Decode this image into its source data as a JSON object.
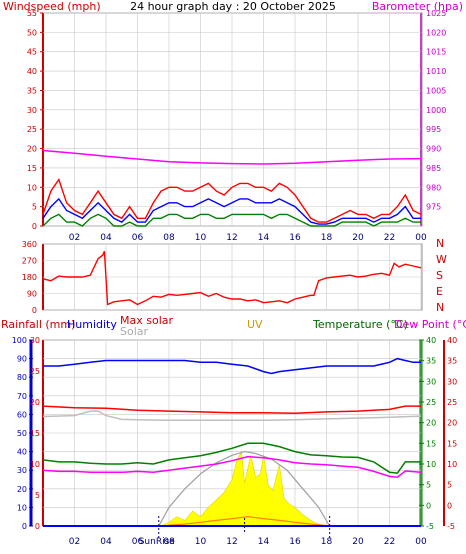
{
  "chart_data": [
    {
      "type": "line",
      "title": "24 hour graph day : 20 October 2025",
      "ylabel_left": "Windspeed (mph)",
      "ylabel_right": "Barometer (hpa)",
      "ylim_left": [
        0,
        55
      ],
      "ylim_right": [
        970,
        1025
      ],
      "yticks_left": [
        "0",
        "5",
        "10",
        "15",
        "20",
        "25",
        "30",
        "35",
        "40",
        "45",
        "50",
        "55"
      ],
      "yticks_right": [
        "975",
        "980",
        "985",
        "990",
        "995",
        "1000",
        "1005",
        "1010",
        "1015",
        "1020",
        "1025"
      ],
      "xticks": [
        "02",
        "04",
        "06",
        "08",
        "10",
        "12",
        "14",
        "16",
        "18",
        "20",
        "22",
        "00"
      ],
      "x_range_hours": [
        0,
        24
      ],
      "series": [
        {
          "key": "gust",
          "color": "#ff0000",
          "axis": "left",
          "x": [
            0,
            0.5,
            1,
            1.5,
            2,
            2.5,
            3,
            3.5,
            4,
            4.5,
            5,
            5.5,
            6,
            6.5,
            7,
            7.5,
            8,
            8.5,
            9,
            9.5,
            10,
            10.5,
            11,
            11.5,
            12,
            12.5,
            13,
            13.5,
            14,
            14.5,
            15,
            15.5,
            16,
            16.5,
            17,
            17.5,
            18,
            18.5,
            19,
            19.5,
            20,
            20.5,
            21,
            21.5,
            22,
            22.5,
            23,
            23.5,
            24
          ],
          "values": [
            3,
            9,
            12,
            6,
            4,
            3,
            6,
            9,
            6,
            3,
            2,
            5,
            2,
            2,
            6,
            9,
            10,
            10,
            9,
            9,
            10,
            11,
            9,
            8,
            10,
            11,
            11,
            10,
            10,
            9,
            11,
            10,
            8,
            5,
            2,
            1,
            1,
            2,
            3,
            4,
            3,
            3,
            2,
            3,
            3,
            5,
            8,
            4,
            3
          ]
        },
        {
          "key": "average",
          "color": "#0000ff",
          "axis": "left",
          "x": [
            0,
            0.5,
            1,
            1.5,
            2,
            2.5,
            3,
            3.5,
            4,
            4.5,
            5,
            5.5,
            6,
            6.5,
            7,
            7.5,
            8,
            8.5,
            9,
            9.5,
            10,
            10.5,
            11,
            11.5,
            12,
            12.5,
            13,
            13.5,
            14,
            14.5,
            15,
            15.5,
            16,
            16.5,
            17,
            17.5,
            18,
            18.5,
            19,
            19.5,
            20,
            20.5,
            21,
            21.5,
            22,
            22.5,
            23,
            23.5,
            24
          ],
          "values": [
            2,
            5,
            7,
            4,
            3,
            2,
            4,
            6,
            4,
            2,
            1,
            3,
            1,
            1,
            4,
            5,
            6,
            6,
            5,
            5,
            6,
            7,
            6,
            5,
            6,
            7,
            7,
            6,
            6,
            6,
            7,
            6,
            5,
            3,
            1,
            0.5,
            0.5,
            1,
            2,
            2,
            2,
            2,
            1,
            2,
            2,
            3,
            5,
            2,
            2
          ]
        },
        {
          "key": "lowest",
          "color": "#008000",
          "axis": "left",
          "x": [
            0,
            0.5,
            1,
            1.5,
            2,
            2.5,
            3,
            3.5,
            4,
            4.5,
            5,
            5.5,
            6,
            6.5,
            7,
            7.5,
            8,
            8.5,
            9,
            9.5,
            10,
            10.5,
            11,
            11.5,
            12,
            12.5,
            13,
            13.5,
            14,
            14.5,
            15,
            15.5,
            16,
            16.5,
            17,
            17.5,
            18,
            18.5,
            19,
            19.5,
            20,
            20.5,
            21,
            21.5,
            22,
            22.5,
            23,
            23.5,
            24
          ],
          "values": [
            0,
            2,
            3,
            1,
            1,
            0,
            2,
            3,
            2,
            0,
            0,
            1,
            0,
            0,
            2,
            2,
            3,
            3,
            2,
            2,
            3,
            3,
            2,
            2,
            3,
            3,
            3,
            3,
            3,
            2,
            3,
            3,
            2,
            1,
            0,
            0,
            0,
            0,
            1,
            1,
            1,
            1,
            0,
            1,
            1,
            1,
            2,
            1,
            1
          ]
        },
        {
          "key": "barometer",
          "color": "#ff00ff",
          "axis": "right",
          "x": [
            0,
            2,
            4,
            6,
            8,
            10,
            12,
            14,
            16,
            18,
            20,
            22,
            24
          ],
          "values": [
            989.5,
            988.8,
            988,
            987.3,
            986.6,
            986.3,
            986.1,
            986,
            986.2,
            986.6,
            987,
            987.3,
            987.4
          ]
        }
      ]
    },
    {
      "type": "line",
      "ylim": [
        0,
        360
      ],
      "yticks": [
        "0",
        "90",
        "180",
        "270",
        "360"
      ],
      "right_labels": [
        "N",
        "W",
        "S",
        "E",
        "N"
      ],
      "x_range_hours": [
        0,
        24
      ],
      "series": [
        {
          "key": "wind_direction",
          "color": "#ff0000",
          "x": [
            0,
            0.5,
            1,
            1.5,
            2,
            2.5,
            3,
            3.5,
            3.8,
            3.9,
            4.1,
            4.5,
            5,
            5.5,
            6,
            6.5,
            7,
            7.5,
            8,
            8.5,
            9,
            9.5,
            10,
            10.5,
            11,
            11.5,
            12,
            12.5,
            13,
            13.5,
            14,
            14.5,
            15,
            15.5,
            16,
            16.5,
            17,
            17.2,
            17.5,
            18,
            18.5,
            19,
            19.5,
            20,
            20.5,
            21,
            21.5,
            22,
            22.3,
            22.6,
            23,
            23.5,
            24
          ],
          "values": [
            170,
            160,
            185,
            180,
            180,
            180,
            190,
            280,
            300,
            320,
            30,
            45,
            50,
            55,
            30,
            50,
            75,
            70,
            85,
            80,
            85,
            90,
            95,
            75,
            90,
            70,
            60,
            60,
            50,
            55,
            40,
            45,
            50,
            40,
            60,
            70,
            80,
            80,
            160,
            175,
            180,
            185,
            190,
            180,
            185,
            195,
            200,
            190,
            255,
            235,
            250,
            240,
            230
          ]
        }
      ]
    },
    {
      "type": "line",
      "legend": [
        "Rainfall (mm)",
        "Humidity",
        "Max solar",
        "Solar",
        "UV",
        "Temperature (°C)",
        "Dew Point (°C)"
      ],
      "yticks_humidity": [
        "0",
        "10",
        "20",
        "30",
        "40",
        "50",
        "60",
        "70",
        "80",
        "90",
        "100"
      ],
      "yticks_rain": [
        "0",
        "5",
        "10",
        "15",
        "20",
        "25",
        "30"
      ],
      "yticks_temp": [
        "-5",
        "0",
        "5",
        "10",
        "15",
        "20",
        "25",
        "30",
        "35",
        "40"
      ],
      "yticks_dewpoint": [
        "-5",
        "0",
        "5",
        "10",
        "15",
        "20",
        "25",
        "30",
        "35",
        "40"
      ],
      "ylim_humidity": [
        0,
        100
      ],
      "ylim_rain": [
        0,
        30
      ],
      "ylim_temp": [
        -5,
        40
      ],
      "xticks": [
        "02",
        "04",
        "06",
        "08",
        "10",
        "12",
        "14",
        "16",
        "18",
        "20",
        "22",
        "00"
      ],
      "sunrise_label": "SunRise",
      "sunrise_hour": 7.35,
      "sunset_hour": 18.2,
      "solar_noon_hour": 12.8,
      "x_range_hours": [
        0,
        24
      ],
      "series": [
        {
          "key": "humidity",
          "color": "#0000ff",
          "axis": "humidity",
          "x": [
            0,
            1,
            2,
            3,
            4,
            5,
            6,
            7,
            8,
            9,
            10,
            11,
            12,
            13,
            14,
            14.5,
            15,
            16,
            17,
            18,
            19,
            20,
            21,
            22,
            22.5,
            23,
            23.5,
            24
          ],
          "values": [
            86,
            86,
            87,
            88,
            89,
            89,
            89,
            89,
            89,
            89,
            88,
            88,
            87,
            86,
            83,
            82,
            83,
            84,
            85,
            86,
            86,
            86,
            86,
            88,
            90,
            89,
            88,
            88
          ]
        },
        {
          "key": "temperature",
          "color": "#ff0000",
          "axis": "temp",
          "x": [
            0,
            2,
            4,
            6,
            8,
            10,
            12,
            14,
            16,
            18,
            20,
            22,
            23,
            24
          ],
          "values": [
            24,
            23.6,
            23.5,
            23,
            22.8,
            22.6,
            22.4,
            22.4,
            22.3,
            22.6,
            22.8,
            23.2,
            24,
            24
          ]
        },
        {
          "key": "solar_reading",
          "color": "#bfbfbf",
          "axis": "temp",
          "x": [
            0,
            2,
            3,
            3.5,
            4,
            5,
            6,
            8,
            10,
            12,
            14,
            16,
            18,
            20,
            22,
            24
          ],
          "values": [
            21.5,
            21.7,
            22.8,
            22.8,
            21.7,
            20.8,
            20.7,
            20.6,
            20.6,
            20.6,
            20.6,
            20.7,
            20.9,
            21.1,
            21.3,
            21.6
          ]
        },
        {
          "key": "green_trace",
          "color": "#008000",
          "axis": "temp",
          "x": [
            0,
            1,
            2,
            3,
            4,
            5,
            6,
            7,
            8,
            9,
            10,
            11,
            12,
            13,
            14,
            15,
            16,
            17,
            18,
            19,
            20,
            21,
            22,
            22.5,
            23,
            24
          ],
          "values": [
            11,
            10.5,
            10.5,
            10.2,
            10,
            10,
            10.3,
            10,
            11,
            11.5,
            12,
            12.8,
            13.8,
            15,
            15,
            14.2,
            13,
            12.2,
            12,
            11.7,
            11.6,
            10.5,
            8,
            7.8,
            10.5,
            10.5
          ]
        },
        {
          "key": "dew_point",
          "color": "#ff00ff",
          "axis": "temp",
          "x": [
            0,
            1,
            2,
            3,
            4,
            5,
            6,
            7,
            8,
            9,
            10,
            11,
            12,
            13,
            14,
            15,
            16,
            17,
            18,
            19,
            20,
            21,
            22,
            22.5,
            23,
            24
          ],
          "values": [
            8.5,
            8.2,
            8.2,
            8,
            8,
            8,
            8.2,
            8,
            8.5,
            9,
            9.5,
            10,
            10.8,
            11.8,
            11.5,
            11,
            10.3,
            10,
            9.8,
            9.5,
            9.2,
            8.2,
            7,
            6.8,
            8.3,
            8
          ]
        },
        {
          "key": "max_solar",
          "color": "#a0a0a0",
          "axis": "humidity",
          "x": [
            7.35,
            8,
            9,
            10,
            11,
            12,
            12.8,
            13.5,
            14.5,
            15.5,
            16.5,
            17.5,
            18.2
          ],
          "values": [
            0,
            10,
            20,
            28,
            34,
            38,
            40,
            39,
            36,
            30,
            20,
            10,
            0
          ]
        },
        {
          "key": "solar",
          "color": "#ffff00",
          "axis": "humidity",
          "x": [
            7.5,
            8,
            8.5,
            9,
            9.5,
            10,
            10.5,
            11,
            11.5,
            12,
            12.3,
            12.6,
            12.8,
            13,
            13.2,
            13.5,
            13.8,
            14,
            14.3,
            14.6,
            15,
            15.3,
            15.6,
            16,
            16.5,
            17,
            17.5,
            18
          ],
          "values": [
            0,
            2,
            5,
            3,
            8,
            5,
            10,
            14,
            18,
            25,
            35,
            40,
            23,
            31,
            38,
            26,
            28,
            38,
            22,
            19,
            33,
            15,
            12,
            10,
            6,
            3,
            1,
            0
          ]
        },
        {
          "key": "uv",
          "color": "#ff8000",
          "axis": "humidity",
          "x": [
            8,
            9,
            10,
            11,
            12,
            13,
            14,
            15,
            16,
            17,
            18
          ],
          "values": [
            0.5,
            1,
            2,
            3,
            4,
            5,
            4,
            3,
            2,
            1,
            0.2
          ]
        },
        {
          "key": "rainfall",
          "color": "#0000ff",
          "axis": "rain",
          "x": [
            0,
            24
          ],
          "values": [
            0,
            0
          ]
        }
      ]
    }
  ]
}
